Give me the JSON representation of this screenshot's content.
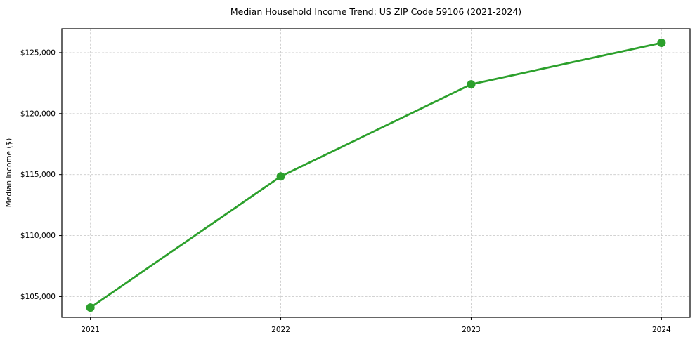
{
  "chart": {
    "title": "Median Household Income Trend: US ZIP Code 59106 (2021-2024)",
    "ylabel": "Median Income ($)"
  },
  "chart_data": {
    "type": "line",
    "title": "Median Household Income Trend: US ZIP Code 59106 (2021-2024)",
    "xlabel": "",
    "ylabel": "Median Income ($)",
    "x": [
      2021,
      2022,
      2023,
      2024
    ],
    "values": [
      104100,
      114850,
      122400,
      125800
    ],
    "series": [
      {
        "name": "Median Household Income",
        "values": [
          104100,
          114850,
          122400,
          125800
        ]
      }
    ],
    "xlim": [
      2020.85,
      2024.15
    ],
    "ylim": [
      103300,
      126950
    ],
    "x_ticks": [
      2021,
      2022,
      2023,
      2024
    ],
    "x_tick_labels": [
      "2021",
      "2022",
      "2023",
      "2024"
    ],
    "y_ticks": [
      105000,
      110000,
      115000,
      120000,
      125000
    ],
    "y_tick_labels": [
      "$105,000",
      "$110,000",
      "$115,000",
      "$120,000",
      "$125,000"
    ],
    "grid": true,
    "grid_style": "dashed",
    "legend": false,
    "line_color": "#2ca02c",
    "marker": "o"
  },
  "colors": {
    "line": "#2ca02c",
    "grid": "#cccccc",
    "axis": "#000000",
    "background": "#ffffff"
  }
}
